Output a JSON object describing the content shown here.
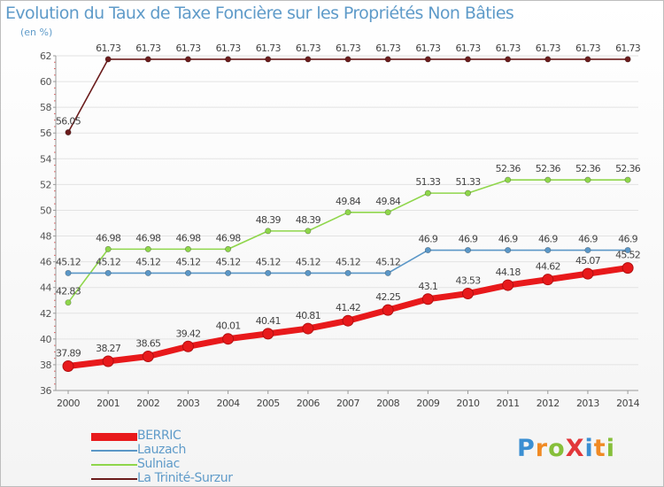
{
  "title": "Evolution du Taux de Taxe Foncière sur les Propriétés Non Bâties",
  "unit_label": "(en %)",
  "logo_text": "ProXiti",
  "chart_data": {
    "type": "line",
    "x": [
      2000,
      2001,
      2002,
      2003,
      2004,
      2005,
      2006,
      2007,
      2008,
      2009,
      2010,
      2011,
      2012,
      2013,
      2014
    ],
    "ylim": [
      36,
      62
    ],
    "yticks": [
      36,
      38,
      40,
      42,
      44,
      46,
      48,
      50,
      52,
      54,
      56,
      58,
      60,
      62
    ],
    "series": [
      {
        "name": "La Trinité-Surzur",
        "color": "#6b1c1c",
        "values": [
          56.05,
          61.73,
          61.73,
          61.73,
          61.73,
          61.73,
          61.73,
          61.73,
          61.73,
          61.73,
          61.73,
          61.73,
          61.73,
          61.73,
          61.73
        ],
        "labels": [
          "56.05",
          "61.73",
          "61.73",
          "61.73",
          "61.73",
          "61.73",
          "61.73",
          "61.73",
          "61.73",
          "61.73",
          "61.73",
          "61.73",
          "61.73",
          "61.73",
          "61.73"
        ]
      },
      {
        "name": "Sulniac",
        "color": "#8fd64b",
        "values": [
          42.83,
          46.98,
          46.98,
          46.98,
          46.98,
          48.39,
          48.39,
          49.84,
          49.84,
          51.33,
          51.33,
          52.36,
          52.36,
          52.36,
          52.36
        ],
        "labels": [
          "42.83",
          "46.98",
          "46.98",
          "46.98",
          "46.98",
          "48.39",
          "48.39",
          "49.84",
          "49.84",
          "51.33",
          "51.33",
          "52.36",
          "52.36",
          "52.36",
          "52.36"
        ]
      },
      {
        "name": "Lauzach",
        "color": "#5b97c7",
        "values": [
          45.12,
          45.12,
          45.12,
          45.12,
          45.12,
          45.12,
          45.12,
          45.12,
          45.12,
          46.9,
          46.9,
          46.9,
          46.9,
          46.9,
          46.9
        ],
        "labels": [
          "45.12",
          "45.12",
          "45.12",
          "45.12",
          "45.12",
          "45.12",
          "45.12",
          "45.12",
          "45.12",
          "46.9",
          "46.9",
          "46.9",
          "46.9",
          "46.9",
          "46.9"
        ]
      },
      {
        "name": "BERRIC",
        "color": "#e8191b",
        "values": [
          37.89,
          38.27,
          38.65,
          39.42,
          40.01,
          40.41,
          40.81,
          41.42,
          42.25,
          43.1,
          43.53,
          44.18,
          44.62,
          45.07,
          45.52
        ],
        "labels": [
          "37.89",
          "38.27",
          "38.65",
          "39.42",
          "40.01",
          "40.41",
          "40.81",
          "41.42",
          "42.25",
          "43.1",
          "43.53",
          "44.18",
          "44.62",
          "45.07",
          "45.52"
        ]
      }
    ]
  },
  "legend": [
    {
      "label": "BERRIC",
      "color": "#e8191b"
    },
    {
      "label": "Lauzach",
      "color": "#5b97c7"
    },
    {
      "label": "Sulniac",
      "color": "#8fd64b"
    },
    {
      "label": "La Trinité-Surzur",
      "color": "#6b1c1c"
    }
  ]
}
